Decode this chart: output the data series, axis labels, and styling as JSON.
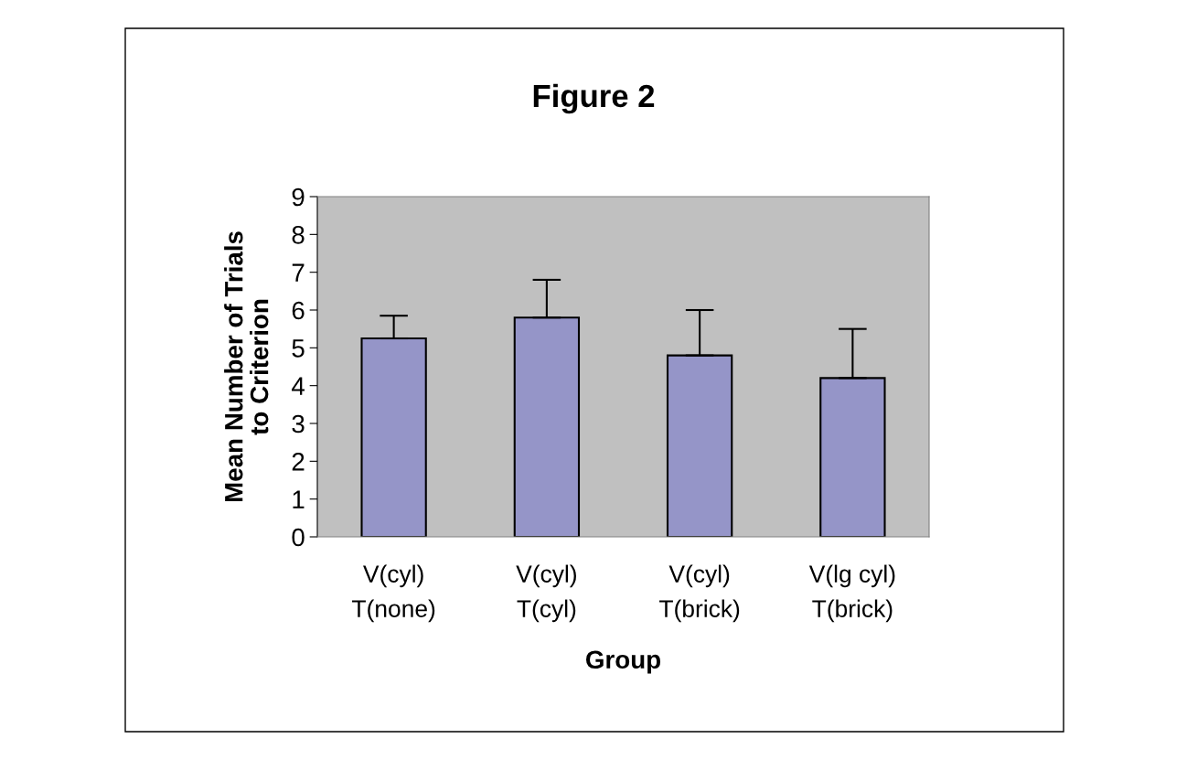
{
  "chart_data": {
    "type": "bar",
    "title": "Figure 2",
    "xlabel": "Group",
    "ylabel": "Mean Number of Trials\nto Criterion",
    "categories": [
      "V(cyl)\nT(none)",
      "V(cyl)\nT(cyl)",
      "V(cyl)\nT(brick)",
      "V(lg cyl)\nT(brick)"
    ],
    "values": [
      5.25,
      5.8,
      4.8,
      4.2
    ],
    "errors": [
      [
        5.25,
        5.85
      ],
      [
        5.8,
        6.8
      ],
      [
        4.8,
        6.0
      ],
      [
        4.2,
        5.5
      ]
    ],
    "color": "#9595c8",
    "ylim": [
      0,
      9
    ],
    "yticks": [
      0,
      1,
      2,
      3,
      4,
      5,
      6,
      7,
      8,
      9
    ],
    "grid": false,
    "legend": false
  }
}
